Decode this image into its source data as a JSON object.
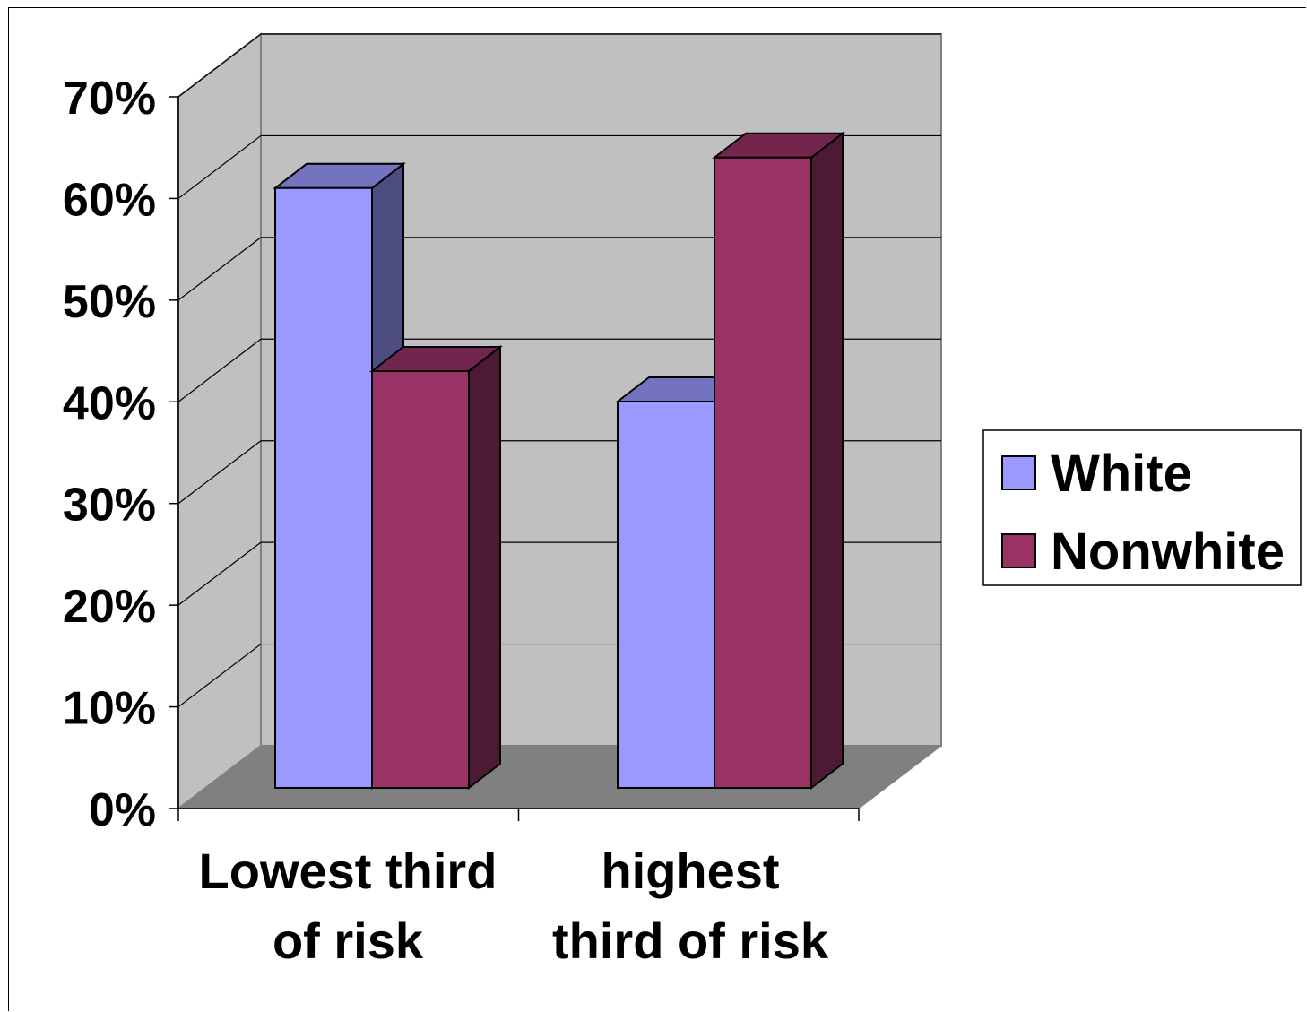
{
  "chart_data": {
    "type": "bar",
    "variant": "3d-clustered-column",
    "categories": [
      [
        "Lowest third",
        "of risk"
      ],
      [
        "highest",
        "third of risk"
      ]
    ],
    "series": [
      {
        "name": "White",
        "values": [
          59,
          38
        ],
        "color": "#9999ff",
        "side_color": "#4d4d80",
        "top_color": "#7373c0"
      },
      {
        "name": "Nonwhite",
        "values": [
          41,
          62
        ],
        "color": "#993366",
        "side_color": "#4d1a33",
        "top_color": "#73264d"
      }
    ],
    "yticks": [
      "0%",
      "10%",
      "20%",
      "30%",
      "40%",
      "50%",
      "60%",
      "70%"
    ],
    "ylim": [
      0,
      70
    ],
    "grid": true,
    "legend": {
      "position": "right"
    },
    "colors": {
      "wall": "#c0c0c0",
      "floor": "#808080"
    }
  }
}
